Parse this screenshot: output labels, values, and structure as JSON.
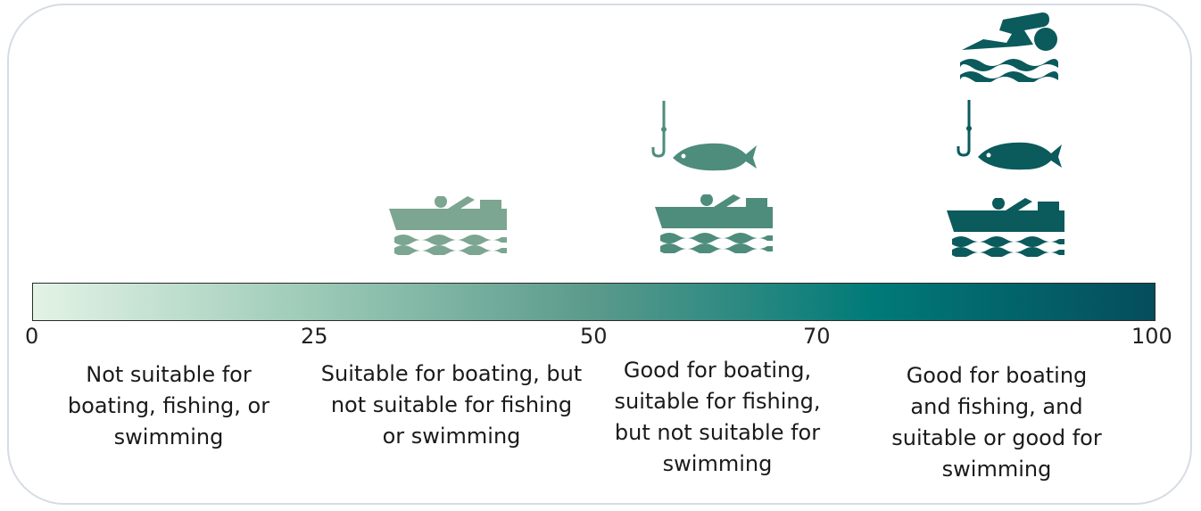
{
  "scale": {
    "min": 0,
    "max": 100,
    "ticks": [
      "0",
      "25",
      "50",
      "70",
      "100"
    ],
    "gradient_colors": [
      "#e3f3e6",
      "#9ccab7",
      "#5a9a8b",
      "#007a78",
      "#054d5d"
    ]
  },
  "icon_colors": {
    "tier_boating": "#7ca592",
    "tier_fishing": "#4e8c7c",
    "tier_swimming": "#0b5a5c"
  },
  "categories": [
    {
      "range": [
        0,
        25
      ],
      "lines": [
        "Not suitable for",
        "boating, fishing, or",
        "swimming"
      ],
      "icons": []
    },
    {
      "range": [
        25,
        50
      ],
      "lines": [
        "Suitable for boating, but",
        "not suitable for fishing",
        "or swimming"
      ],
      "icons": [
        "boat-icon"
      ]
    },
    {
      "range": [
        50,
        70
      ],
      "lines": [
        "Good for boating,",
        "suitable for fishing,",
        "but not suitable for",
        "swimming"
      ],
      "icons": [
        "boat-icon",
        "fish-hook-icon"
      ]
    },
    {
      "range": [
        70,
        100
      ],
      "lines": [
        "Good for boating",
        "and fishing, and",
        "suitable or good for",
        "swimming"
      ],
      "icons": [
        "boat-icon",
        "fish-hook-icon",
        "swimmer-icon"
      ]
    }
  ]
}
